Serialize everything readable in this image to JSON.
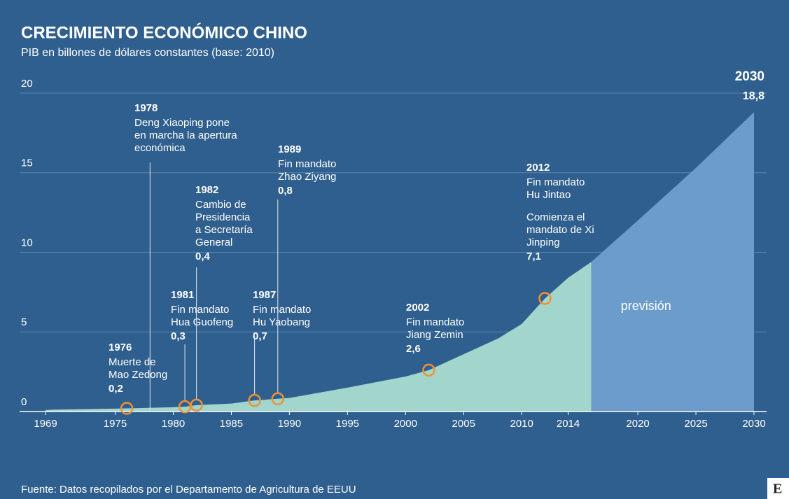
{
  "chart_data": {
    "type": "area",
    "title": "CRECIMIENTO ECONÓMICO CHINO",
    "subtitle": "PIB en billones de dólares constantes (base: 2010)",
    "source": "Fuente: Datos recopilados por el Departamento de Agricultura de EEUU",
    "logo": "E",
    "x": [
      1969,
      1970,
      1975,
      1976,
      1980,
      1981,
      1982,
      1985,
      1987,
      1989,
      1990,
      1995,
      2000,
      2002,
      2005,
      2008,
      2010,
      2012,
      2014,
      2016,
      2020,
      2025,
      2030
    ],
    "values": [
      0.1,
      0.12,
      0.18,
      0.2,
      0.27,
      0.3,
      0.4,
      0.5,
      0.7,
      0.8,
      0.85,
      1.5,
      2.2,
      2.6,
      3.6,
      4.6,
      5.5,
      7.1,
      8.4,
      9.4,
      12.0,
      15.3,
      18.8
    ],
    "color": "#a2d5cb",
    "forecast_from": 2016,
    "forecast_color": "#6b9ccb",
    "forecast_label": "previsión",
    "xlim": [
      1969,
      2030
    ],
    "xticks": [
      1969,
      1975,
      1980,
      1985,
      1990,
      1995,
      2000,
      2005,
      2010,
      2014,
      2020,
      2025,
      2030
    ],
    "ylim": [
      0,
      20
    ],
    "yticks": [
      0,
      5,
      10,
      15,
      20
    ],
    "grid": true,
    "events": [
      {
        "year": 1976,
        "paragraphs": [
          [
            "Muerte de",
            "Mao Zedong"
          ]
        ],
        "value": 0.2,
        "value_label": "0,2"
      },
      {
        "year": 1978,
        "paragraphs": [
          [
            "Deng Xiaoping pone",
            "en marcha la apertura",
            "económica"
          ]
        ]
      },
      {
        "year": 1981,
        "paragraphs": [
          [
            "Fin mandato",
            "Hua Guofeng"
          ]
        ],
        "value": 0.3,
        "value_label": "0,3"
      },
      {
        "year": 1982,
        "paragraphs": [
          [
            "Cambio de",
            "Presidencia",
            "a Secretaría",
            "General"
          ]
        ],
        "value": 0.4,
        "value_label": "0,4"
      },
      {
        "year": 1987,
        "paragraphs": [
          [
            "Fin mandato",
            "Hu Yaobang"
          ]
        ],
        "value": 0.7,
        "value_label": "0,7"
      },
      {
        "year": 1989,
        "paragraphs": [
          [
            "Fin mandato",
            "Zhao Ziyang"
          ]
        ],
        "value": 0.8,
        "value_label": "0,8"
      },
      {
        "year": 2002,
        "paragraphs": [
          [
            "Fin mandato",
            "Jiang Zemin"
          ]
        ],
        "value": 2.6,
        "value_label": "2,6"
      },
      {
        "year": 2012,
        "paragraphs": [
          [
            "Fin mandato",
            "Hu Jintao"
          ],
          [
            "Comienza el",
            "mandato de Xi",
            "Jinping"
          ]
        ],
        "value": 7.1,
        "value_label": "7,1"
      },
      {
        "year": 2030,
        "paragraphs": [],
        "value": 18.8,
        "value_label": "18,8"
      }
    ]
  }
}
